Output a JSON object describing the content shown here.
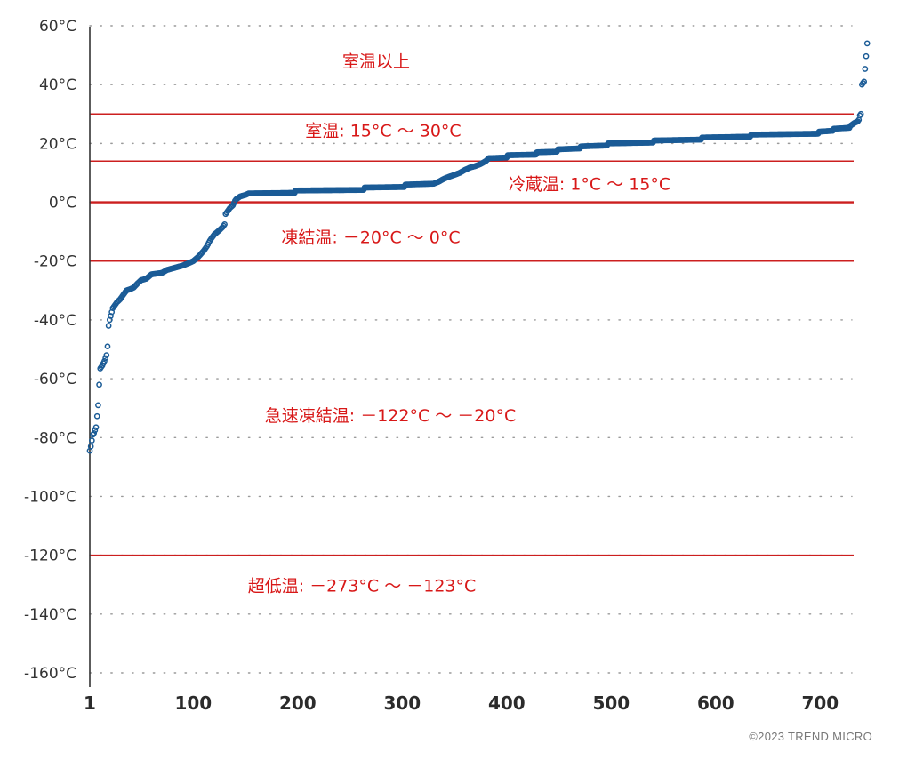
{
  "chart_data": {
    "type": "scatter",
    "title": "",
    "xlabel": "",
    "ylabel": "",
    "xlim": [
      1,
      745
    ],
    "ylim": [
      -160,
      60
    ],
    "x_ticks": [
      1,
      100,
      200,
      300,
      400,
      500,
      600,
      700
    ],
    "y_ticks": [
      60,
      40,
      20,
      0,
      -20,
      -40,
      -60,
      -80,
      -100,
      -120,
      -140,
      -160
    ],
    "y_unit": "°C",
    "grid": "horizontal-dotted",
    "marker": "hollow circle",
    "point_color": "#1a5b96",
    "line_color": "#cc1f1f",
    "zone_text_color": "#d81818",
    "threshold_lines": [
      30,
      14,
      0,
      -20,
      -120
    ],
    "zones": [
      {
        "label": "室温以上",
        "y": 48
      },
      {
        "label": "室温: 15°C ～ 30°C",
        "y": 24.5
      },
      {
        "label": "冷蔵温: 1°C ～ 15°C",
        "y": 6.3
      },
      {
        "label": "凍結温: －20°C ～ 0°C",
        "y": -11.8
      },
      {
        "label": "急速凍結温: －122°C ～ －20°C",
        "y": -72.4
      },
      {
        "label": "超低温: －273°C ～ －123°C",
        "y": -130.2
      }
    ],
    "series": [
      {
        "sorted_profile": [
          [
            1,
            -84.5
          ],
          [
            2,
            -83
          ],
          [
            3,
            -81
          ],
          [
            4,
            -79
          ],
          [
            5,
            -78.5
          ],
          [
            7,
            -76.5
          ],
          [
            9,
            -69
          ],
          [
            10,
            -62
          ],
          [
            11,
            -56.5
          ],
          [
            13,
            -55.5
          ],
          [
            15,
            -54
          ],
          [
            17,
            -52
          ],
          [
            18,
            -49
          ],
          [
            19,
            -42
          ],
          [
            20,
            -40
          ],
          [
            23,
            -36
          ],
          [
            25,
            -35
          ],
          [
            27,
            -34
          ],
          [
            30,
            -33
          ],
          [
            33,
            -31.5
          ],
          [
            36,
            -30
          ],
          [
            40,
            -29.5
          ],
          [
            43,
            -29
          ],
          [
            47,
            -27.5
          ],
          [
            50,
            -26.5
          ],
          [
            55,
            -26
          ],
          [
            60,
            -24.5
          ],
          [
            70,
            -24
          ],
          [
            75,
            -23
          ],
          [
            80,
            -22.5
          ],
          [
            85,
            -22
          ],
          [
            90,
            -21.5
          ],
          [
            97,
            -20.5
          ],
          [
            100,
            -20
          ],
          [
            105,
            -18.5
          ],
          [
            110,
            -16.5
          ],
          [
            113,
            -15
          ],
          [
            116,
            -13
          ],
          [
            120,
            -11
          ],
          [
            125,
            -9.5
          ],
          [
            128,
            -8.5
          ],
          [
            130,
            -7.5
          ],
          [
            131,
            -4
          ],
          [
            133,
            -3
          ],
          [
            135,
            -2
          ],
          [
            138,
            -1
          ],
          [
            140,
            0.5
          ],
          [
            141,
            1
          ],
          [
            145,
            2
          ],
          [
            150,
            2.5
          ],
          [
            153,
            3
          ],
          [
            197,
            3.2
          ],
          [
            198,
            4
          ],
          [
            263,
            4.2
          ],
          [
            264,
            5
          ],
          [
            302,
            5.2
          ],
          [
            303,
            6
          ],
          [
            330,
            6.3
          ],
          [
            335,
            7
          ],
          [
            340,
            8
          ],
          [
            345,
            8.7
          ],
          [
            350,
            9.3
          ],
          [
            355,
            10
          ],
          [
            360,
            11
          ],
          [
            365,
            11.8
          ],
          [
            370,
            12.3
          ],
          [
            375,
            13
          ],
          [
            380,
            14
          ],
          [
            383,
            15
          ],
          [
            400,
            15.2
          ],
          [
            401,
            16
          ],
          [
            428,
            16.2
          ],
          [
            429,
            17
          ],
          [
            448,
            17.2
          ],
          [
            449,
            18
          ],
          [
            470,
            18.3
          ],
          [
            471,
            19
          ],
          [
            496,
            19.3
          ],
          [
            497,
            20
          ],
          [
            540,
            20.3
          ],
          [
            541,
            21
          ],
          [
            586,
            21.3
          ],
          [
            587,
            22
          ],
          [
            633,
            22.3
          ],
          [
            634,
            23
          ],
          [
            698,
            23.3
          ],
          [
            699,
            24
          ],
          [
            712,
            24.3
          ],
          [
            713,
            25
          ],
          [
            728,
            25.3
          ],
          [
            729,
            26
          ],
          [
            733,
            27
          ],
          [
            736,
            27.5
          ],
          [
            737,
            28
          ],
          [
            738,
            29.5
          ],
          [
            739,
            30
          ],
          [
            740,
            40
          ],
          [
            741,
            40.5
          ],
          [
            742,
            41
          ],
          [
            745,
            54
          ]
        ]
      }
    ]
  },
  "copyright": "©2023 TREND MICRO"
}
